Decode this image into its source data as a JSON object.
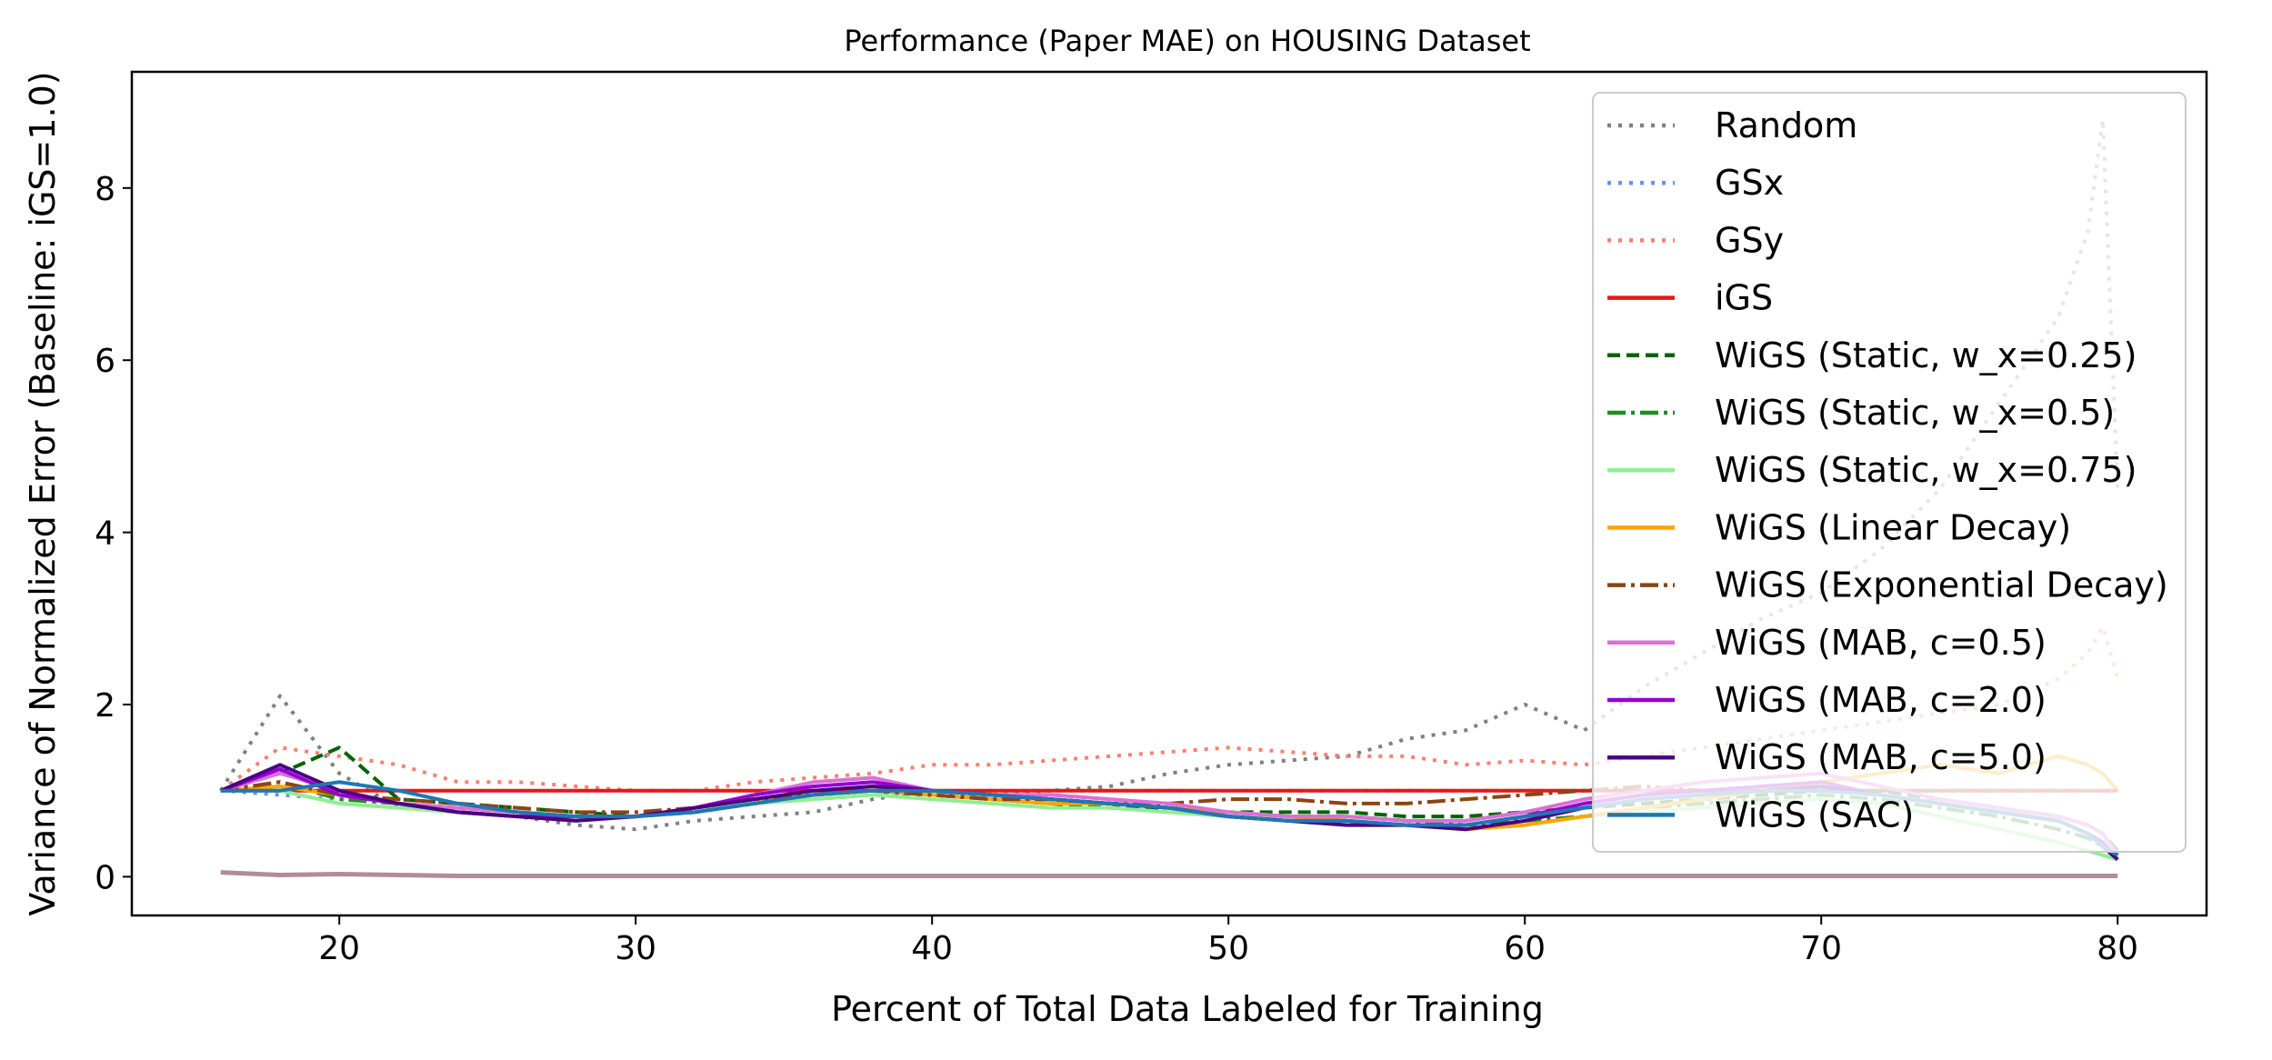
{
  "chart_data": {
    "type": "line",
    "title": "Performance (Paper MAE) on HOUSING Dataset",
    "xlabel": "Percent of Total Data Labeled for Training",
    "ylabel": "Variance of Normalized Error (Baseline: iGS=1.0)",
    "xlim": [
      13,
      83
    ],
    "ylim": [
      -0.45,
      9.35
    ],
    "xticks": [
      20,
      30,
      40,
      50,
      60,
      70,
      80
    ],
    "yticks": [
      0,
      2,
      4,
      6,
      8
    ],
    "grid": false,
    "legend_position": "upper right",
    "x": [
      16,
      18,
      20,
      22,
      24,
      26,
      28,
      30,
      32,
      34,
      36,
      38,
      40,
      42,
      44,
      46,
      48,
      50,
      52,
      54,
      56,
      58,
      60,
      62,
      64,
      66,
      68,
      70,
      72,
      74,
      76,
      78,
      79,
      79.5,
      80
    ],
    "series": [
      {
        "name": "Random",
        "color": "#808080",
        "dash": "4,8",
        "width": 4,
        "values": [
          1.0,
          2.1,
          1.2,
          0.8,
          0.75,
          0.7,
          0.6,
          0.55,
          0.65,
          0.7,
          0.75,
          0.9,
          1.0,
          1.0,
          1.0,
          1.05,
          1.2,
          1.3,
          1.35,
          1.4,
          1.6,
          1.7,
          2.0,
          1.7,
          2.2,
          2.6,
          3.0,
          3.3,
          3.8,
          4.5,
          5.5,
          6.5,
          7.5,
          8.8,
          4.5
        ]
      },
      {
        "name": "GSx",
        "color": "#6495ED",
        "dash": "4,8",
        "width": 4,
        "values": [
          1.0,
          0.95,
          0.9,
          0.85,
          0.8,
          0.75,
          0.7,
          0.7,
          0.75,
          0.85,
          0.9,
          0.95,
          0.95,
          0.95,
          1.0,
          1.0,
          1.0,
          1.0,
          1.0,
          1.0,
          1.0,
          1.0,
          1.0,
          1.0,
          1.0,
          1.0,
          1.0,
          1.0,
          1.0,
          1.0,
          1.0,
          1.0,
          1.0,
          1.0,
          1.0
        ]
      },
      {
        "name": "GSy",
        "color": "#FA8072",
        "dash": "4,8",
        "width": 4,
        "values": [
          1.0,
          1.5,
          1.4,
          1.3,
          1.1,
          1.1,
          1.05,
          1.0,
          1.0,
          1.1,
          1.15,
          1.2,
          1.3,
          1.3,
          1.35,
          1.4,
          1.45,
          1.5,
          1.45,
          1.4,
          1.4,
          1.3,
          1.35,
          1.3,
          1.4,
          1.5,
          1.6,
          1.7,
          1.8,
          1.9,
          2.0,
          2.3,
          2.6,
          2.9,
          2.3
        ]
      },
      {
        "name": "iGS",
        "color": "#E8161B",
        "dash": "",
        "width": 4,
        "values": [
          1.0,
          1.0,
          1.0,
          1.0,
          1.0,
          1.0,
          1.0,
          1.0,
          1.0,
          1.0,
          1.0,
          1.0,
          1.0,
          1.0,
          1.0,
          1.0,
          1.0,
          1.0,
          1.0,
          1.0,
          1.0,
          1.0,
          1.0,
          1.0,
          1.0,
          1.0,
          1.0,
          1.0,
          1.0,
          1.0,
          1.0,
          1.0,
          1.0,
          1.0,
          1.0
        ]
      },
      {
        "name": "WiGS (Static, w_x=0.25)",
        "color": "#006400",
        "dash": "14,7",
        "width": 4,
        "values": [
          1.0,
          1.2,
          1.5,
          0.9,
          0.85,
          0.8,
          0.75,
          0.7,
          0.75,
          0.85,
          0.95,
          1.0,
          0.95,
          0.9,
          0.85,
          0.8,
          0.8,
          0.75,
          0.75,
          0.75,
          0.7,
          0.7,
          0.75,
          0.8,
          0.85,
          0.9,
          0.95,
          1.0,
          1.0,
          0.9,
          0.8,
          0.7,
          0.6,
          0.5,
          0.3
        ]
      },
      {
        "name": "WiGS (Static, w_x=0.5)",
        "color": "#228B22",
        "dash": "20,6,4,6",
        "width": 4,
        "values": [
          1.0,
          1.1,
          0.9,
          0.85,
          0.8,
          0.75,
          0.7,
          0.7,
          0.8,
          0.9,
          0.95,
          1.0,
          0.95,
          0.9,
          0.85,
          0.85,
          0.8,
          0.75,
          0.7,
          0.7,
          0.65,
          0.6,
          0.65,
          0.7,
          0.8,
          0.85,
          0.9,
          0.95,
          0.9,
          0.8,
          0.7,
          0.55,
          0.45,
          0.35,
          0.25
        ]
      },
      {
        "name": "WiGS (Static, w_x=0.75)",
        "color": "#90EE90",
        "dash": "",
        "width": 4,
        "values": [
          1.0,
          1.0,
          0.85,
          0.8,
          0.75,
          0.7,
          0.7,
          0.7,
          0.8,
          0.85,
          0.9,
          0.95,
          0.9,
          0.85,
          0.8,
          0.8,
          0.75,
          0.7,
          0.7,
          0.65,
          0.6,
          0.55,
          0.6,
          0.7,
          0.75,
          0.8,
          0.85,
          0.9,
          0.85,
          0.7,
          0.55,
          0.4,
          0.3,
          0.25,
          0.2
        ]
      },
      {
        "name": "WiGS (Linear Decay)",
        "color": "#FFA500",
        "dash": "",
        "width": 4,
        "values": [
          1.0,
          1.05,
          0.95,
          0.85,
          0.8,
          0.75,
          0.7,
          0.7,
          0.8,
          0.9,
          0.95,
          1.0,
          0.95,
          0.9,
          0.85,
          0.85,
          0.8,
          0.75,
          0.7,
          0.65,
          0.6,
          0.55,
          0.6,
          0.7,
          0.8,
          0.9,
          1.0,
          1.1,
          1.2,
          1.3,
          1.2,
          1.4,
          1.3,
          1.2,
          1.0
        ]
      },
      {
        "name": "WiGS (Exponential Decay)",
        "color": "#8B4513",
        "dash": "20,6,4,6",
        "width": 4,
        "values": [
          1.0,
          1.1,
          0.95,
          0.9,
          0.85,
          0.8,
          0.75,
          0.75,
          0.8,
          0.9,
          0.95,
          1.0,
          0.95,
          0.9,
          0.9,
          0.85,
          0.85,
          0.9,
          0.9,
          0.85,
          0.85,
          0.9,
          0.95,
          1.0,
          1.05,
          1.0,
          1.0,
          1.0,
          1.0,
          1.0,
          1.0,
          1.0,
          1.0,
          1.0,
          1.0
        ]
      },
      {
        "name": "WiGS (MAB, c=0.5)",
        "color": "#DA70D6",
        "dash": "",
        "width": 4,
        "values": [
          1.0,
          1.2,
          1.0,
          0.85,
          0.8,
          0.75,
          0.7,
          0.7,
          0.8,
          0.95,
          1.1,
          1.15,
          1.0,
          0.95,
          0.95,
          0.9,
          0.85,
          0.75,
          0.7,
          0.7,
          0.65,
          0.65,
          0.75,
          0.9,
          1.0,
          1.1,
          1.15,
          1.2,
          1.05,
          0.9,
          0.8,
          0.7,
          0.6,
          0.5,
          0.25
        ]
      },
      {
        "name": "WiGS (MAB, c=2.0)",
        "color": "#9400D3",
        "dash": "",
        "width": 4,
        "values": [
          1.0,
          1.25,
          0.95,
          0.85,
          0.75,
          0.7,
          0.7,
          0.7,
          0.8,
          0.95,
          1.05,
          1.1,
          1.0,
          0.95,
          0.9,
          0.85,
          0.8,
          0.7,
          0.65,
          0.65,
          0.6,
          0.6,
          0.7,
          0.85,
          0.95,
          1.0,
          1.05,
          1.1,
          0.95,
          0.85,
          0.75,
          0.65,
          0.5,
          0.4,
          0.2
        ]
      },
      {
        "name": "WiGS (MAB, c=5.0)",
        "color": "#4B0082",
        "dash": "",
        "width": 4,
        "values": [
          1.0,
          1.3,
          1.0,
          0.85,
          0.75,
          0.7,
          0.65,
          0.7,
          0.8,
          0.9,
          1.0,
          1.05,
          1.0,
          0.95,
          0.9,
          0.85,
          0.8,
          0.7,
          0.65,
          0.6,
          0.6,
          0.55,
          0.65,
          0.8,
          0.9,
          0.95,
          1.0,
          1.05,
          0.95,
          0.85,
          0.75,
          0.65,
          0.5,
          0.35,
          0.2
        ]
      },
      {
        "name": "WiGS (SAC)",
        "color": "#1F77B4",
        "dash": "",
        "width": 4,
        "values": [
          1.0,
          1.0,
          1.1,
          1.0,
          0.85,
          0.75,
          0.7,
          0.7,
          0.75,
          0.85,
          0.95,
          1.0,
          1.0,
          0.95,
          0.9,
          0.85,
          0.8,
          0.7,
          0.65,
          0.65,
          0.6,
          0.6,
          0.7,
          0.8,
          0.9,
          0.95,
          1.0,
          1.0,
          0.95,
          0.85,
          0.75,
          0.65,
          0.5,
          0.35,
          0.25
        ]
      }
    ],
    "bottom_band": {
      "color": "#B08C9C",
      "values": [
        0.05,
        0.02,
        0.03,
        0.02,
        0.01,
        0.01,
        0.01,
        0.01,
        0.01,
        0.01,
        0.01,
        0.01,
        0.01,
        0.01,
        0.01,
        0.01,
        0.01,
        0.01,
        0.01,
        0.01,
        0.01,
        0.01,
        0.01,
        0.01,
        0.01,
        0.01,
        0.01,
        0.01,
        0.01,
        0.01,
        0.01,
        0.01,
        0.01,
        0.01,
        0.01
      ]
    }
  }
}
